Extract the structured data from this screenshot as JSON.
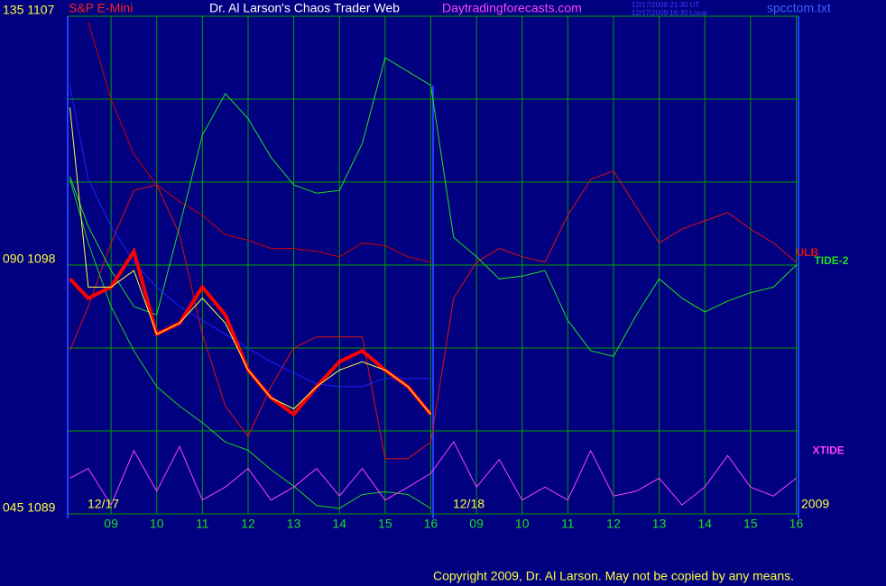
{
  "chart_data": {
    "type": "line",
    "title": "Dr. Al Larson's Chaos Trader Web",
    "instrument": "S&P E-Mini",
    "site": "Daytradingforecasts.com",
    "timestamps": [
      "12/17/2009 21:30 UT",
      "12/17/2009 16:30 Local"
    ],
    "file": "spcctom.txt",
    "copyright": "Copyright 2009, Dr. Al Larson. May not be copied by any means.",
    "annotations": [
      "12/17",
      "12/18",
      "2009"
    ],
    "grid": true,
    "background": "#000080",
    "grid_color": "#00a000",
    "xlim": [
      8.05,
      24.05
    ],
    "xticks": [
      {
        "value": 9,
        "label": "09"
      },
      10,
      11,
      12,
      13,
      14,
      15,
      16,
      {
        "value": 17,
        "label": "09"
      },
      {
        "value": 18,
        "label": "10"
      },
      {
        "value": 19,
        "label": "11"
      },
      {
        "value": 20,
        "label": "12"
      },
      {
        "value": 21,
        "label": "13"
      },
      {
        "value": 22,
        "label": "14"
      },
      {
        "value": 23,
        "label": "15"
      },
      {
        "value": 24,
        "label": "16"
      }
    ],
    "ylim": [
      1089,
      1107
    ],
    "yticks": [
      {
        "value": 1107,
        "label": "135  1107"
      },
      {
        "value": 1098,
        "label": "090  1098"
      },
      {
        "value": 1089,
        "label": "045  1089"
      }
    ],
    "ygrid": [
      1104,
      1101,
      1095,
      1092
    ],
    "y2lim": [
      0,
      100
    ],
    "x": [
      8.1,
      8.5,
      9,
      9.5,
      10,
      10.5,
      11,
      11.5,
      12,
      12.5,
      13,
      13.5,
      14,
      14.5,
      15,
      15.5,
      16,
      16.5,
      17,
      17.5,
      18,
      18.5,
      19,
      19.5,
      20,
      20.5,
      21,
      21.5,
      22,
      22.5,
      23,
      23.5,
      24
    ],
    "series": [
      {
        "color": "#d00000",
        "values": [
          null,
          1106.8,
          1104.0,
          1102.0,
          1100.9,
          1100.3,
          1099.8,
          1099.1,
          1098.9,
          1098.6,
          1098.6,
          1098.5,
          1098.3,
          1098.8,
          1098.7,
          1098.3,
          1098.1,
          null,
          null,
          null,
          null,
          null,
          null,
          null,
          null,
          null,
          null,
          null,
          null,
          null,
          null,
          null,
          null
        ]
      },
      {
        "name": "ULB",
        "color": "#e01010",
        "values": [
          1094.9,
          1096.5,
          1098.8,
          1100.7,
          1100.9,
          1099.1,
          1095.5,
          1092.9,
          1091.8,
          1093.6,
          1095.0,
          1095.4,
          1095.4,
          1095.4,
          1091.0,
          1091.0,
          1091.6,
          1096.8,
          1098.1,
          1098.6,
          1098.3,
          1098.1,
          1099.8,
          1101.1,
          1101.4,
          1100.1,
          1098.8,
          1099.3,
          1099.6,
          1099.9,
          1099.3,
          1098.8,
          1098.1
        ]
      },
      {
        "name": "TIDE-2",
        "color": "#20e020",
        "values": [
          1101.2,
          1099.4,
          1097.8,
          1096.5,
          1096.2,
          1099.4,
          1102.7,
          1104.2,
          1103.3,
          1101.9,
          1100.9,
          1100.6,
          1100.7,
          1102.4,
          1105.5,
          1105.0,
          1104.5,
          1099.0,
          1098.3,
          1097.5,
          1097.6,
          1097.8,
          1096.0,
          1094.9,
          1094.7,
          1096.2,
          1097.5,
          1096.8,
          1096.3,
          1096.7,
          1097.0,
          1097.2,
          1098.0
        ]
      },
      {
        "color": "#20d020",
        "values": [
          1101.1,
          1098.8,
          1096.5,
          1094.9,
          1093.6,
          1092.9,
          1092.3,
          1091.6,
          1091.3,
          1090.6,
          1090.0,
          1089.3,
          1089.2,
          1089.7,
          1089.8,
          1089.7,
          1089.2,
          null,
          null,
          null,
          null,
          null,
          null,
          null,
          null,
          null,
          null,
          null,
          null,
          null,
          null,
          null,
          null
        ]
      },
      {
        "color": "#2020ff",
        "values": [
          1104.5,
          1101.1,
          1099.4,
          1098.1,
          1097.2,
          1096.5,
          1096.0,
          1095.5,
          1095.0,
          1094.5,
          1094.1,
          1093.7,
          1093.6,
          1093.6,
          1093.9,
          1093.9,
          1093.9,
          null,
          null,
          null,
          null,
          null,
          null,
          null,
          null,
          null,
          null,
          null,
          null,
          null,
          null,
          null,
          null
        ]
      },
      {
        "color": "#ff0000",
        "width": 4,
        "values": [
          1097.5,
          1096.8,
          1097.2,
          1098.5,
          1095.5,
          1095.9,
          1097.2,
          1096.2,
          1094.2,
          1093.2,
          1092.6,
          1093.6,
          1094.5,
          1094.9,
          1094.2,
          1093.6,
          1092.6,
          null,
          null,
          null,
          null,
          null,
          null,
          null,
          null,
          null,
          null,
          null,
          null,
          null,
          null,
          null,
          null
        ]
      },
      {
        "color": "#ffff40",
        "values": [
          1103.7,
          1097.2,
          1097.2,
          1097.8,
          1095.5,
          1095.9,
          1096.8,
          1095.9,
          1094.2,
          1093.2,
          1092.8,
          1093.6,
          1094.2,
          1094.5,
          1094.2,
          1093.6,
          1092.6,
          null,
          null,
          null,
          null,
          null,
          null,
          null,
          null,
          null,
          null,
          null,
          null,
          null,
          null,
          null,
          null
        ]
      },
      {
        "name": "XTIDE",
        "color": "#ff40ff",
        "axis": "y2",
        "values": [
          44,
          56,
          11,
          78,
          28,
          83,
          17,
          33,
          56,
          17,
          33,
          56,
          22,
          56,
          17,
          33,
          50,
          89,
          33,
          67,
          17,
          33,
          17,
          78,
          22,
          28,
          44,
          11,
          33,
          72,
          33,
          22,
          44
        ]
      }
    ]
  }
}
